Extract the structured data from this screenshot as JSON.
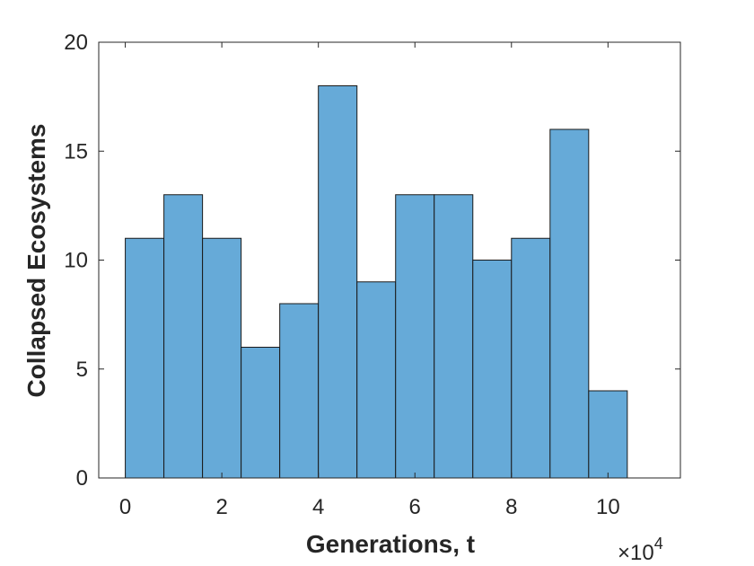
{
  "chart_data": {
    "type": "bar",
    "subtype": "histogram",
    "title": "",
    "xlabel": "Generations, t",
    "ylabel": "Collapsed Ecosystems",
    "x_exponent_label": {
      "base": "×10",
      "exponent": "4"
    },
    "bin_width": 0.8,
    "bin_edges": [
      0,
      0.8,
      1.6,
      2.4,
      3.2,
      4.0,
      4.8,
      5.6,
      6.4,
      7.2,
      8.0,
      8.8,
      9.6,
      10.4
    ],
    "values": [
      11,
      13,
      11,
      6,
      8,
      18,
      9,
      13,
      13,
      10,
      11,
      16,
      4
    ],
    "xlim": [
      -0.55,
      11.5
    ],
    "ylim": [
      0,
      20
    ],
    "xticks": [
      0,
      2,
      4,
      6,
      8,
      10
    ],
    "xtick_labels": [
      "0",
      "2",
      "4",
      "6",
      "8",
      "10"
    ],
    "yticks": [
      0,
      5,
      10,
      15,
      20
    ],
    "ytick_labels": [
      "0",
      "5",
      "10",
      "15",
      "20"
    ],
    "grid": false,
    "legend": "none",
    "colors": {
      "bar_fill": "#66aad8",
      "bar_edge": "#1a1a1a",
      "axis": "#262626",
      "background": "#ffffff"
    }
  }
}
